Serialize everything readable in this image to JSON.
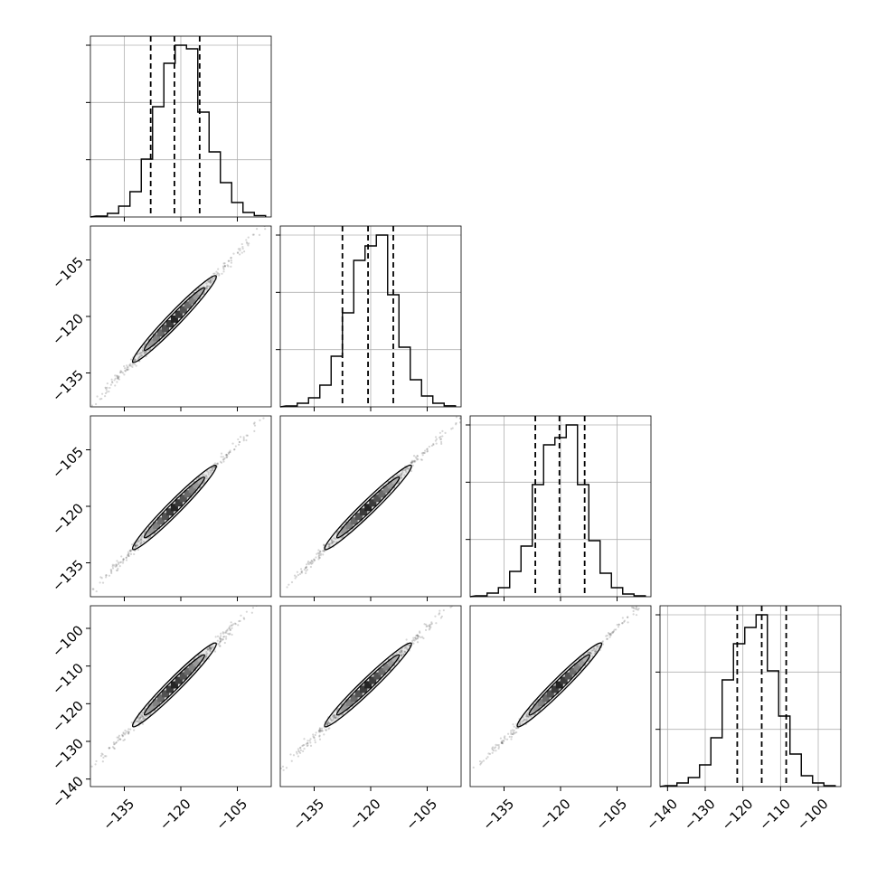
{
  "chart_data": {
    "type": "corner",
    "n_params": 4,
    "quantile_lines": "dashed",
    "grid": true,
    "params": [
      {
        "range": [
          -144,
          -96
        ],
        "ticks": [
          -135,
          -120,
          -105
        ],
        "tick_labels": [
          "−135",
          "−120",
          "−105"
        ],
        "quantiles": [
          -128,
          -121.7,
          -115
        ],
        "hist": [
          {
            "x": -141,
            "h": 0.005
          },
          {
            "x": -138,
            "h": 0.02
          },
          {
            "x": -135,
            "h": 0.06
          },
          {
            "x": -132,
            "h": 0.14
          },
          {
            "x": -129,
            "h": 0.32
          },
          {
            "x": -126,
            "h": 0.61
          },
          {
            "x": -123,
            "h": 0.85
          },
          {
            "x": -120,
            "h": 0.95
          },
          {
            "x": -117,
            "h": 0.93
          },
          {
            "x": -114,
            "h": 0.58
          },
          {
            "x": -111,
            "h": 0.36
          },
          {
            "x": -108,
            "h": 0.19
          },
          {
            "x": -105,
            "h": 0.08
          },
          {
            "x": -102,
            "h": 0.025
          },
          {
            "x": -99,
            "h": 0.008
          }
        ]
      },
      {
        "range": [
          -144,
          -96
        ],
        "ticks": [
          -135,
          -120,
          -105
        ],
        "tick_labels": [
          "−135",
          "−120",
          "−105"
        ],
        "quantiles": [
          -127.5,
          -120.7,
          -114
        ],
        "hist": [
          {
            "x": -141,
            "h": 0.005
          },
          {
            "x": -138,
            "h": 0.02
          },
          {
            "x": -135,
            "h": 0.05
          },
          {
            "x": -132,
            "h": 0.12
          },
          {
            "x": -129,
            "h": 0.28
          },
          {
            "x": -126,
            "h": 0.52
          },
          {
            "x": -123,
            "h": 0.81
          },
          {
            "x": -120,
            "h": 0.89
          },
          {
            "x": -117,
            "h": 0.95
          },
          {
            "x": -114,
            "h": 0.62
          },
          {
            "x": -111,
            "h": 0.33
          },
          {
            "x": -108,
            "h": 0.15
          },
          {
            "x": -105,
            "h": 0.06
          },
          {
            "x": -102,
            "h": 0.02
          },
          {
            "x": -99,
            "h": 0.006
          }
        ]
      },
      {
        "range": [
          -144,
          -96
        ],
        "ticks": [
          -135,
          -120,
          -105
        ],
        "tick_labels": [
          "−135",
          "−120",
          "−105"
        ],
        "quantiles": [
          -126.7,
          -120.3,
          -113.6
        ],
        "hist": [
          {
            "x": -141,
            "h": 0.005
          },
          {
            "x": -138,
            "h": 0.02
          },
          {
            "x": -135,
            "h": 0.05
          },
          {
            "x": -132,
            "h": 0.14
          },
          {
            "x": -129,
            "h": 0.28
          },
          {
            "x": -126,
            "h": 0.62
          },
          {
            "x": -123,
            "h": 0.84
          },
          {
            "x": -120,
            "h": 0.88
          },
          {
            "x": -117,
            "h": 0.95
          },
          {
            "x": -114,
            "h": 0.62
          },
          {
            "x": -111,
            "h": 0.31
          },
          {
            "x": -108,
            "h": 0.13
          },
          {
            "x": -105,
            "h": 0.05
          },
          {
            "x": -102,
            "h": 0.015
          },
          {
            "x": -99,
            "h": 0.005
          }
        ]
      },
      {
        "range": [
          -142,
          -94
        ],
        "ticks": [
          -140,
          -130,
          -120,
          -110,
          -100
        ],
        "tick_labels": [
          "−140",
          "−130",
          "−120",
          "−110",
          "−100"
        ],
        "quantiles": [
          -121.5,
          -115,
          -108.5
        ],
        "hist": [
          {
            "x": -139,
            "h": 0.005
          },
          {
            "x": -136,
            "h": 0.02
          },
          {
            "x": -133,
            "h": 0.05
          },
          {
            "x": -130,
            "h": 0.12
          },
          {
            "x": -127,
            "h": 0.27
          },
          {
            "x": -124,
            "h": 0.59
          },
          {
            "x": -121,
            "h": 0.79
          },
          {
            "x": -118,
            "h": 0.88
          },
          {
            "x": -115,
            "h": 0.95
          },
          {
            "x": -112,
            "h": 0.64
          },
          {
            "x": -109,
            "h": 0.39
          },
          {
            "x": -106,
            "h": 0.18
          },
          {
            "x": -103,
            "h": 0.06
          },
          {
            "x": -100,
            "h": 0.02
          },
          {
            "x": -97,
            "h": 0.005
          }
        ]
      }
    ]
  }
}
